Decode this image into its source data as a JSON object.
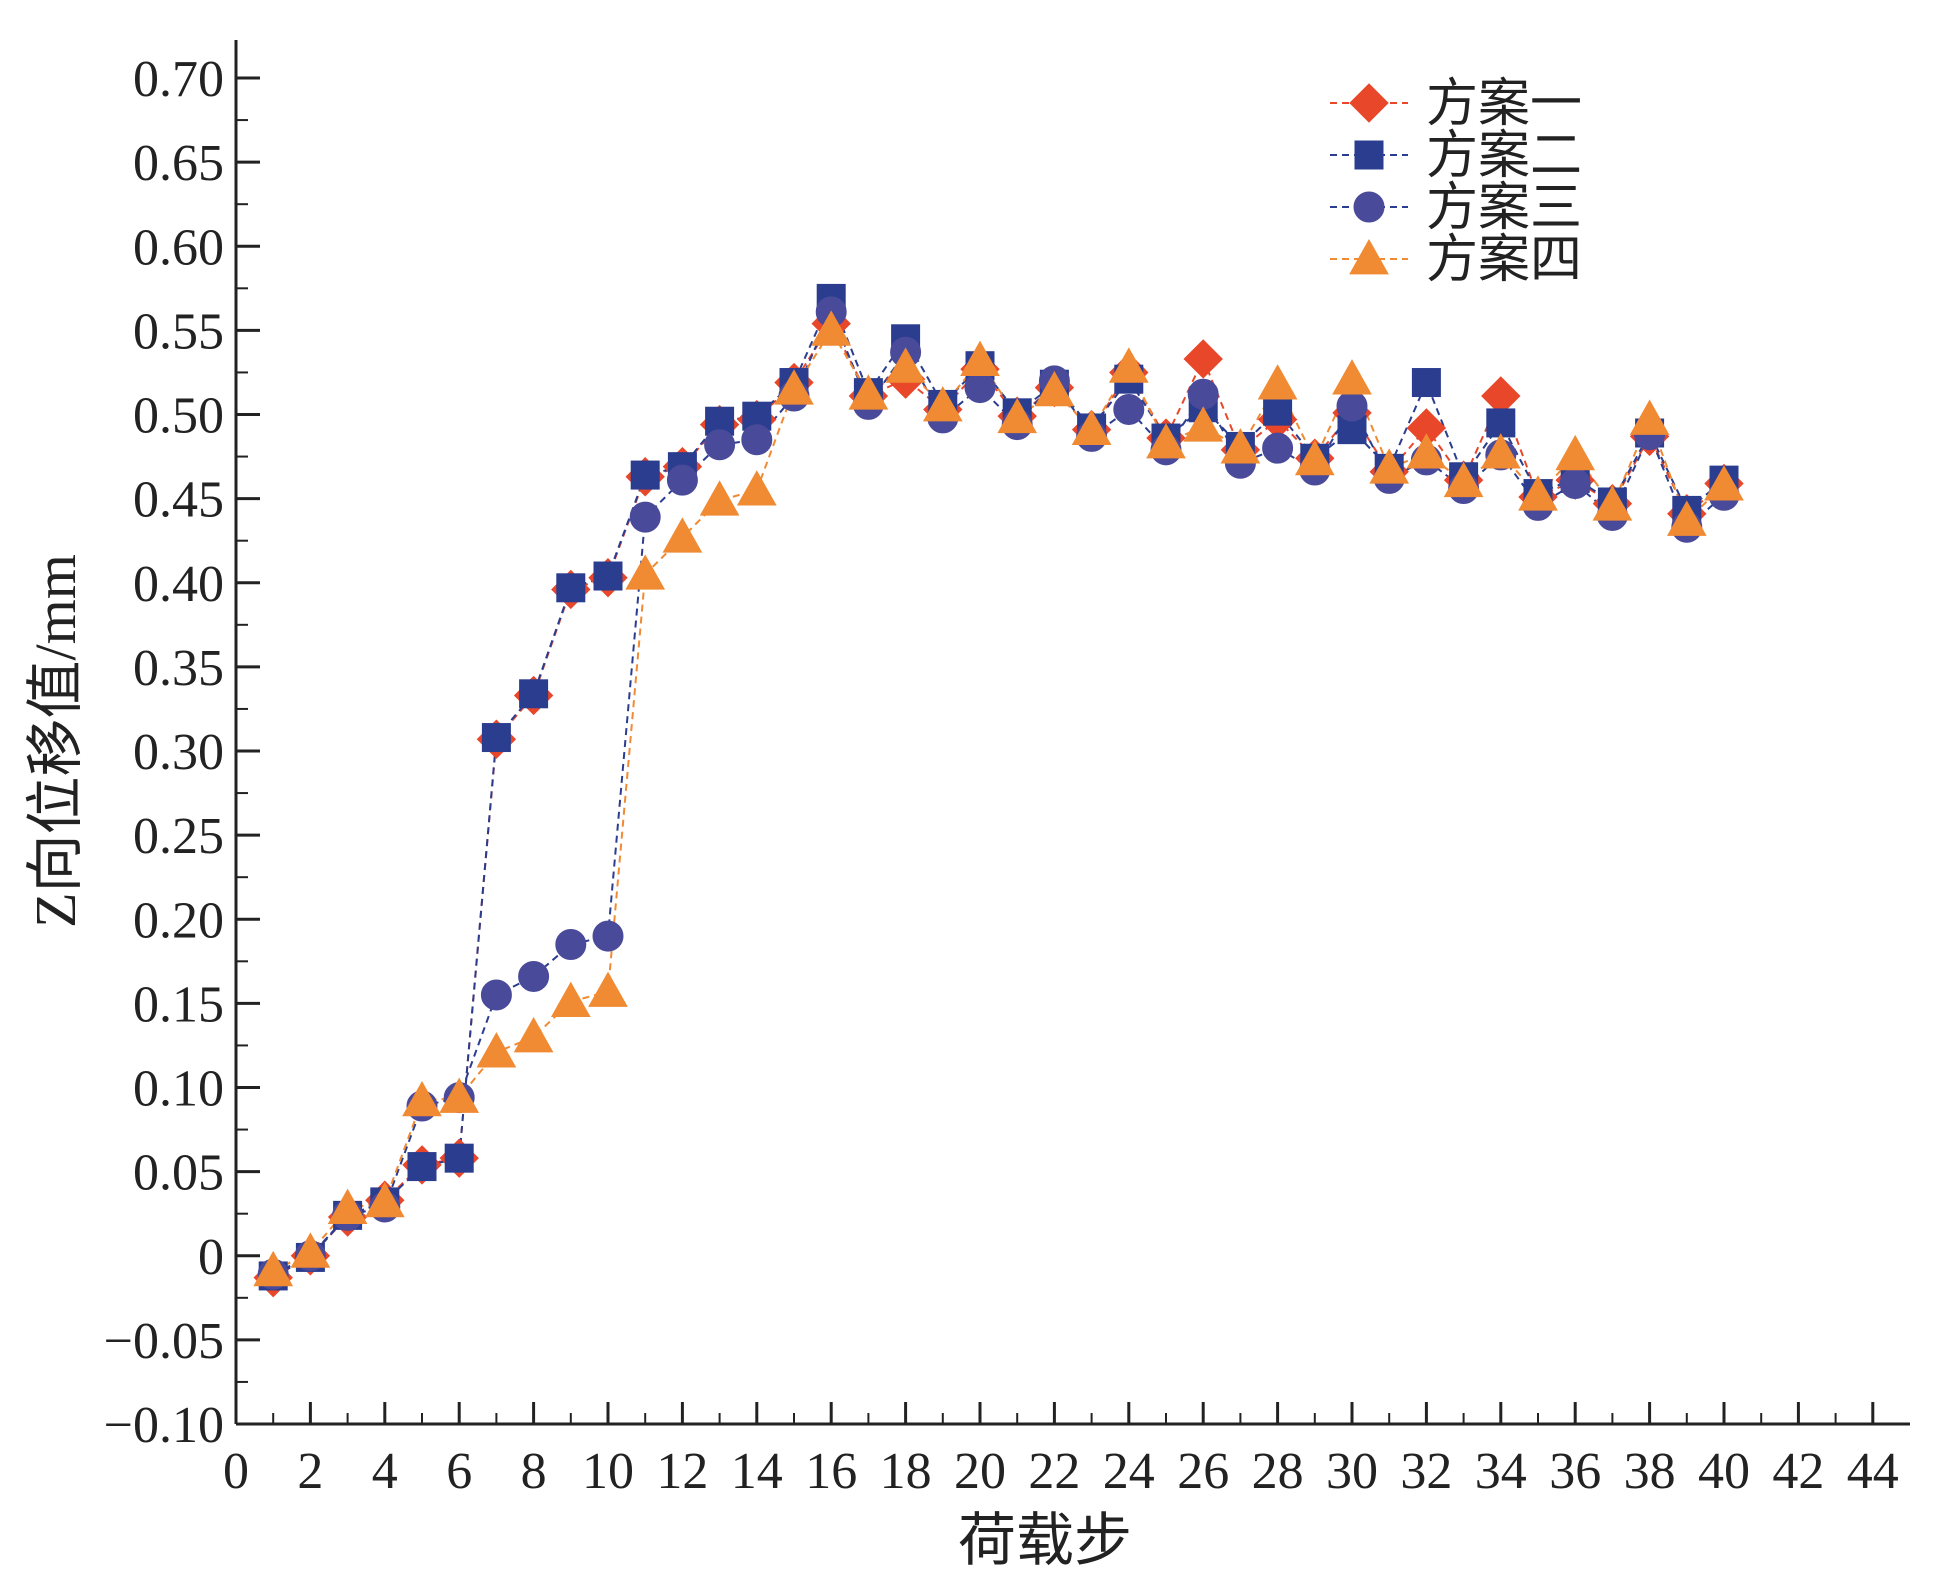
{
  "chart_data": {
    "type": "scatter",
    "title": "",
    "xlabel": "荷载步",
    "ylabel": "Z向位移值/mm",
    "xlim": [
      0,
      45
    ],
    "ylim": [
      -0.1,
      0.7
    ],
    "xticks": [
      0,
      2,
      4,
      6,
      8,
      10,
      12,
      14,
      16,
      18,
      20,
      22,
      24,
      26,
      28,
      30,
      32,
      34,
      36,
      38,
      40,
      42,
      44
    ],
    "yticks": [
      -0.1,
      -0.05,
      0,
      0.05,
      0.1,
      0.15,
      0.2,
      0.25,
      0.3,
      0.35,
      0.4,
      0.45,
      0.5,
      0.55,
      0.6,
      0.65,
      0.7
    ],
    "ytick_labels": [
      "−0.10",
      "−0.05",
      "0",
      "0.05",
      "0.10",
      "0.15",
      "0.20",
      "0.25",
      "0.30",
      "0.35",
      "0.40",
      "0.45",
      "0.50",
      "0.55",
      "0.60",
      "0.65",
      "0.70"
    ],
    "grid": false,
    "legend_position": "top-right",
    "x": [
      1,
      2,
      3,
      4,
      5,
      6,
      7,
      8,
      9,
      10,
      11,
      12,
      13,
      14,
      15,
      16,
      17,
      18,
      19,
      20,
      21,
      22,
      23,
      24,
      25,
      26,
      27,
      28,
      29,
      30,
      31,
      32,
      33,
      34,
      35,
      36,
      37,
      38,
      39,
      40
    ],
    "series": [
      {
        "name": "方案一",
        "marker": "diamond",
        "color": "#e8472a",
        "values": [
          -0.013,
          0.0,
          0.023,
          0.033,
          0.054,
          0.058,
          0.307,
          0.333,
          0.396,
          0.403,
          0.463,
          0.469,
          0.494,
          0.497,
          0.519,
          0.554,
          0.511,
          0.521,
          0.503,
          0.527,
          0.499,
          0.516,
          0.491,
          0.525,
          0.486,
          0.533,
          0.479,
          0.497,
          0.474,
          0.501,
          0.466,
          0.492,
          0.461,
          0.511,
          0.451,
          0.461,
          0.447,
          0.487,
          0.441,
          0.459
        ]
      },
      {
        "name": "方案二",
        "marker": "square",
        "color": "#2b3d8f",
        "values": [
          -0.012,
          -0.001,
          0.024,
          0.032,
          0.053,
          0.058,
          0.308,
          0.334,
          0.397,
          0.404,
          0.464,
          0.469,
          0.496,
          0.499,
          0.519,
          0.569,
          0.513,
          0.545,
          0.506,
          0.529,
          0.501,
          0.518,
          0.492,
          0.521,
          0.486,
          0.504,
          0.481,
          0.502,
          0.474,
          0.491,
          0.468,
          0.519,
          0.463,
          0.495,
          0.453,
          0.462,
          0.448,
          0.489,
          0.443,
          0.461
        ]
      },
      {
        "name": "方案三",
        "marker": "circle",
        "color": "#4a4a9a",
        "values": [
          -0.011,
          0.0,
          0.024,
          0.029,
          0.089,
          0.094,
          0.155,
          0.166,
          0.185,
          0.19,
          0.439,
          0.461,
          0.482,
          0.485,
          0.511,
          0.561,
          0.506,
          0.537,
          0.498,
          0.516,
          0.494,
          0.52,
          0.487,
          0.503,
          0.479,
          0.512,
          0.471,
          0.48,
          0.467,
          0.505,
          0.462,
          0.473,
          0.456,
          0.476,
          0.446,
          0.459,
          0.44,
          0.488,
          0.433,
          0.452
        ]
      },
      {
        "name": "方案四",
        "marker": "triangle",
        "color": "#f08a33",
        "values": [
          -0.009,
          0.002,
          0.028,
          0.032,
          0.092,
          0.094,
          0.121,
          0.13,
          0.151,
          0.157,
          0.405,
          0.427,
          0.449,
          0.455,
          0.515,
          0.55,
          0.512,
          0.528,
          0.505,
          0.532,
          0.498,
          0.514,
          0.491,
          0.528,
          0.483,
          0.493,
          0.48,
          0.518,
          0.473,
          0.521,
          0.468,
          0.477,
          0.46,
          0.477,
          0.452,
          0.476,
          0.446,
          0.497,
          0.437,
          0.458
        ]
      }
    ]
  }
}
